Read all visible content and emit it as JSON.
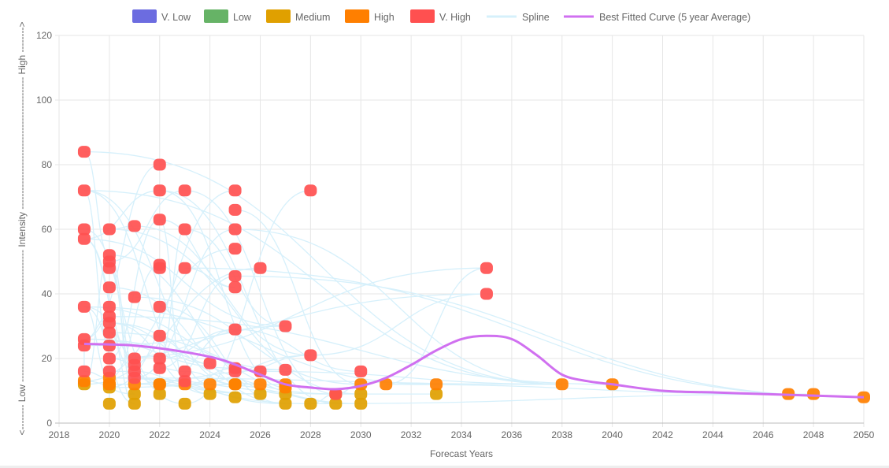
{
  "chart_data": {
    "type": "scatter",
    "xlabel": "Forecast Years",
    "ylabel": "<-------- Low ------------------------------------------ Intensity ------------------------------------------ High -------->",
    "xlim": [
      2018,
      2050
    ],
    "ylim": [
      0,
      120
    ],
    "x_ticks": [
      2018,
      2020,
      2022,
      2024,
      2026,
      2028,
      2030,
      2032,
      2034,
      2036,
      2038,
      2040,
      2042,
      2044,
      2046,
      2048,
      2050
    ],
    "y_ticks": [
      0,
      20,
      40,
      60,
      80,
      100,
      120
    ],
    "grid": true,
    "legend_position": "top",
    "legend": [
      {
        "label": "V. Low",
        "color": "#6c6ce0"
      },
      {
        "label": "Low",
        "color": "#66b366"
      },
      {
        "label": "Medium",
        "color": "#e0a000"
      },
      {
        "label": "High",
        "color": "#ff7f00"
      },
      {
        "label": "V. High",
        "color": "#ff5050"
      },
      {
        "label": "Spline",
        "color": "#d6f0fb"
      },
      {
        "label": "Best Fitted Curve (5 year Average)",
        "color": "#d070f0"
      }
    ],
    "series": [
      {
        "name": "Medium",
        "color": "#e0a000",
        "points": [
          [
            2019,
            12
          ],
          [
            2020,
            6
          ],
          [
            2020,
            11
          ],
          [
            2020,
            12
          ],
          [
            2021,
            6
          ],
          [
            2021,
            9
          ],
          [
            2022,
            9
          ],
          [
            2022,
            12
          ],
          [
            2023,
            6
          ],
          [
            2024,
            9
          ],
          [
            2025,
            8
          ],
          [
            2025,
            12
          ],
          [
            2026,
            9
          ],
          [
            2027,
            6
          ],
          [
            2027,
            9
          ],
          [
            2028,
            6
          ],
          [
            2029,
            6
          ],
          [
            2029,
            9
          ],
          [
            2030,
            6
          ],
          [
            2030,
            9
          ],
          [
            2033,
            9
          ]
        ]
      },
      {
        "name": "High",
        "color": "#ff7f00",
        "points": [
          [
            2019,
            13
          ],
          [
            2020,
            12
          ],
          [
            2020,
            14
          ],
          [
            2021,
            12
          ],
          [
            2022,
            12
          ],
          [
            2023,
            12
          ],
          [
            2024,
            12
          ],
          [
            2025,
            12
          ],
          [
            2026,
            12
          ],
          [
            2027,
            11
          ],
          [
            2027,
            12
          ],
          [
            2030,
            12
          ],
          [
            2031,
            12
          ],
          [
            2033,
            12
          ],
          [
            2038,
            12
          ],
          [
            2040,
            12
          ],
          [
            2047,
            9
          ],
          [
            2048,
            9
          ],
          [
            2050,
            8
          ]
        ]
      },
      {
        "name": "V. High",
        "color": "#ff5050",
        "points": [
          [
            2019,
            84
          ],
          [
            2019,
            72
          ],
          [
            2019,
            60
          ],
          [
            2019,
            57
          ],
          [
            2019,
            36
          ],
          [
            2019,
            26
          ],
          [
            2019,
            24
          ],
          [
            2019,
            16
          ],
          [
            2020,
            60
          ],
          [
            2020,
            52
          ],
          [
            2020,
            50
          ],
          [
            2020,
            48
          ],
          [
            2020,
            42
          ],
          [
            2020,
            36
          ],
          [
            2020,
            33
          ],
          [
            2020,
            31
          ],
          [
            2020,
            28
          ],
          [
            2020,
            24
          ],
          [
            2020,
            20
          ],
          [
            2020,
            16
          ],
          [
            2021,
            61
          ],
          [
            2021,
            39
          ],
          [
            2021,
            20
          ],
          [
            2021,
            18
          ],
          [
            2021,
            16
          ],
          [
            2021,
            14
          ],
          [
            2022,
            80
          ],
          [
            2022,
            72
          ],
          [
            2022,
            63
          ],
          [
            2022,
            49
          ],
          [
            2022,
            48
          ],
          [
            2022,
            36
          ],
          [
            2022,
            27
          ],
          [
            2022,
            20
          ],
          [
            2022,
            17
          ],
          [
            2023,
            72
          ],
          [
            2023,
            60
          ],
          [
            2023,
            48
          ],
          [
            2023,
            16
          ],
          [
            2023,
            13
          ],
          [
            2024,
            18.5
          ],
          [
            2025,
            72
          ],
          [
            2025,
            66
          ],
          [
            2025,
            60
          ],
          [
            2025,
            54
          ],
          [
            2025,
            45.5
          ],
          [
            2025,
            42
          ],
          [
            2025,
            29
          ],
          [
            2025,
            17
          ],
          [
            2025,
            16
          ],
          [
            2026,
            48
          ],
          [
            2026,
            16
          ],
          [
            2027,
            30
          ],
          [
            2027,
            16.5
          ],
          [
            2028,
            72
          ],
          [
            2028,
            21
          ],
          [
            2029,
            9
          ],
          [
            2030,
            16
          ],
          [
            2035,
            48
          ],
          [
            2035,
            40
          ]
        ]
      }
    ],
    "best_fit": {
      "name": "Best Fitted Curve (5 year Average)",
      "x": [
        2019,
        2021,
        2023,
        2024.5,
        2026,
        2027,
        2028,
        2029,
        2030,
        2031,
        2032,
        2033,
        2034,
        2035,
        2036,
        2037,
        2038,
        2039,
        2040,
        2042,
        2044,
        2046,
        2048,
        2050
      ],
      "y": [
        24.5,
        24,
        22,
        19.5,
        15,
        12,
        11,
        10.5,
        11.5,
        14,
        18,
        22.5,
        26,
        27,
        26,
        21,
        15,
        13,
        12,
        10,
        9.5,
        9,
        8.5,
        8
      ]
    }
  }
}
